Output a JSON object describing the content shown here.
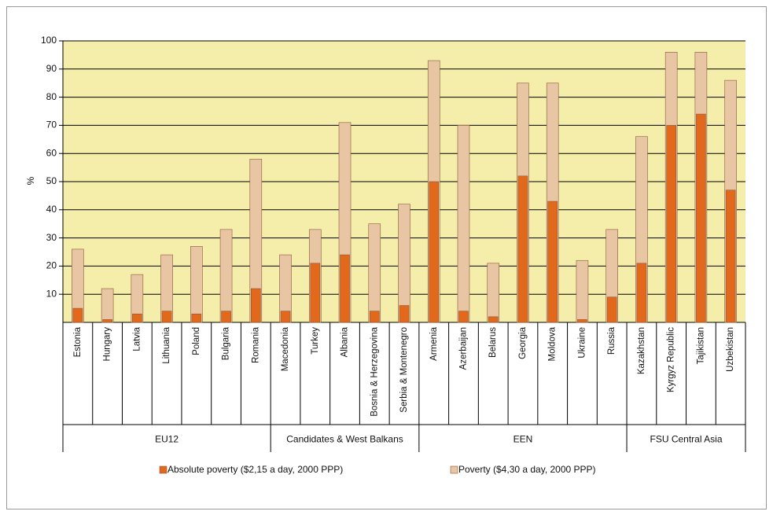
{
  "chart_data": {
    "type": "bar",
    "y_label": "%",
    "ylim": [
      0,
      100
    ],
    "yticks": [
      10,
      20,
      30,
      40,
      50,
      60,
      70,
      80,
      90,
      100
    ],
    "grid": true,
    "background": "#f5eeaa",
    "legend": "bottom",
    "groups": [
      {
        "name": "EU12",
        "categories": [
          "Estonia",
          "Hungary",
          "Latvia",
          "Lithuania",
          "Poland",
          "Bulgaria",
          "Romania"
        ]
      },
      {
        "name": "Candidates & West Balkans",
        "categories": [
          "Macedonia",
          "Turkey",
          "Albania",
          "Bosnia & Herzegovina",
          "Serbia & Montenegro"
        ]
      },
      {
        "name": "EEN",
        "categories": [
          "Armenia",
          "Azerbaijan",
          "Belarus",
          "Georgia",
          "Moldova",
          "Ukraine",
          "Russia"
        ]
      },
      {
        "name": "FSU Central Asia",
        "categories": [
          "Kazakhstan",
          "Kyrgyz Republic",
          "Tajikistan",
          "Uzbekistan"
        ]
      }
    ],
    "series": [
      {
        "name": "Absolute poverty ($2,15 a day, 2000 PPP)",
        "color": "#e2691c",
        "values": [
          5,
          1,
          3,
          4,
          3,
          4,
          12,
          4,
          21,
          24,
          4,
          6,
          50,
          4,
          2,
          52,
          43,
          1,
          9,
          21,
          70,
          74,
          47
        ]
      },
      {
        "name": "Poverty ($4,30 a day, 2000 PPP)",
        "color": "#e8c6a4",
        "values": [
          26,
          12,
          17,
          24,
          27,
          33,
          58,
          24,
          33,
          71,
          35,
          42,
          93,
          70,
          21,
          85,
          85,
          22,
          33,
          66,
          96,
          96,
          86
        ]
      }
    ]
  }
}
